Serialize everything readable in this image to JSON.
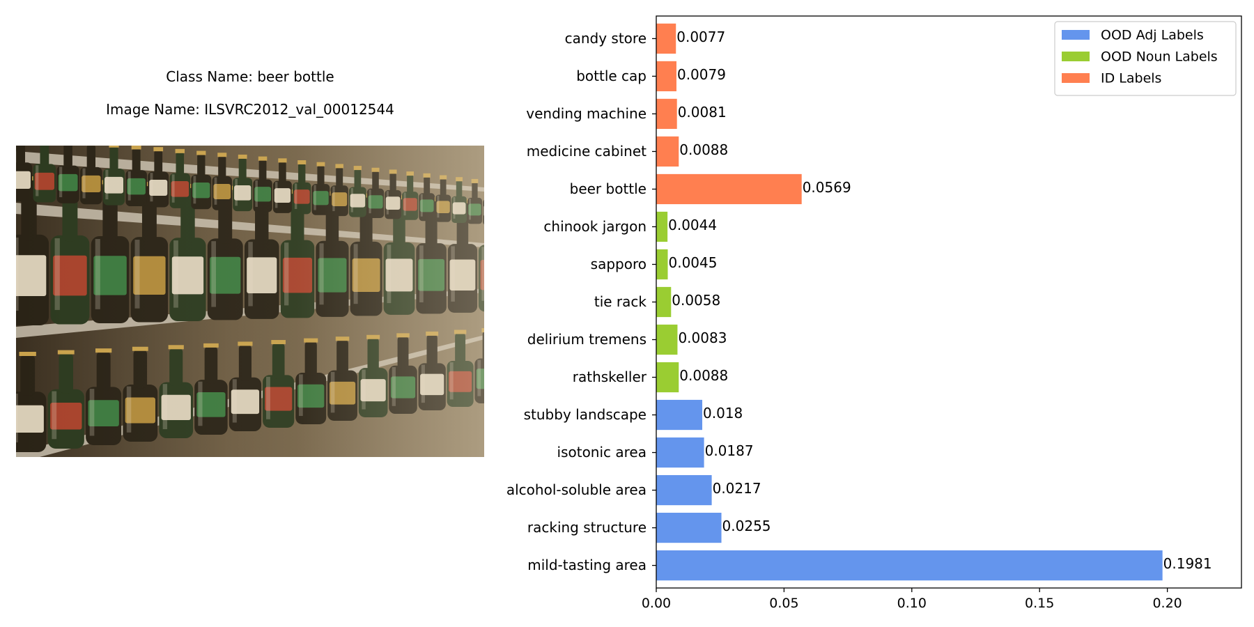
{
  "panel": {
    "class_line": "Class Name: beer bottle",
    "image_line": "Image Name: ILSVRC2012_val_00012544"
  },
  "photo": {
    "content": "beer-bottles-on-shelves-photo",
    "colors": {
      "background": "#6d5c42",
      "shelf": "#c9bfae",
      "bottle_dark": "#2a2316",
      "bottle_green": "#2c3a1f",
      "label_cream": "#d8cdb6",
      "label_red": "#a8432c",
      "label_green": "#3d7a3f",
      "label_gold": "#b08a3a",
      "cap_gold": "#c9a24c",
      "highlight": "#e6dcc8"
    }
  },
  "chart_data": {
    "type": "bar",
    "orientation": "horizontal",
    "categories": [
      "mild-tasting area",
      "racking structure",
      "alcohol-soluble area",
      "isotonic area",
      "stubby landscape",
      "rathskeller",
      "delirium tremens",
      "tie rack",
      "sapporo",
      "chinook jargon",
      "beer bottle",
      "medicine cabinet",
      "vending machine",
      "bottle cap",
      "candy store"
    ],
    "values": [
      0.1981,
      0.0255,
      0.0217,
      0.0187,
      0.018,
      0.0088,
      0.0083,
      0.0058,
      0.0045,
      0.0044,
      0.0569,
      0.0088,
      0.0081,
      0.0079,
      0.0077
    ],
    "value_labels": [
      "0.1981",
      "0.0255",
      "0.0217",
      "0.0187",
      "0.018",
      "0.0088",
      "0.0083",
      "0.0058",
      "0.0045",
      "0.0044",
      "0.0569",
      "0.0088",
      "0.0081",
      "0.0079",
      "0.0077"
    ],
    "groups": [
      "adj",
      "adj",
      "adj",
      "adj",
      "adj",
      "noun",
      "noun",
      "noun",
      "noun",
      "noun",
      "id",
      "id",
      "id",
      "id",
      "id"
    ],
    "series": [
      {
        "key": "adj",
        "name": "OOD Adj Labels",
        "color": "#6495ed"
      },
      {
        "key": "noun",
        "name": "OOD Noun Labels",
        "color": "#9acd32"
      },
      {
        "key": "id",
        "name": "ID Labels",
        "color": "#ff7f50"
      }
    ],
    "xlim": [
      0,
      0.229
    ],
    "xticks": [
      0,
      0.05,
      0.1,
      0.15,
      0.2
    ],
    "xtick_labels": [
      "0.00",
      "0.05",
      "0.10",
      "0.15",
      "0.20"
    ],
    "legend_position": "top-right",
    "grid": false
  }
}
